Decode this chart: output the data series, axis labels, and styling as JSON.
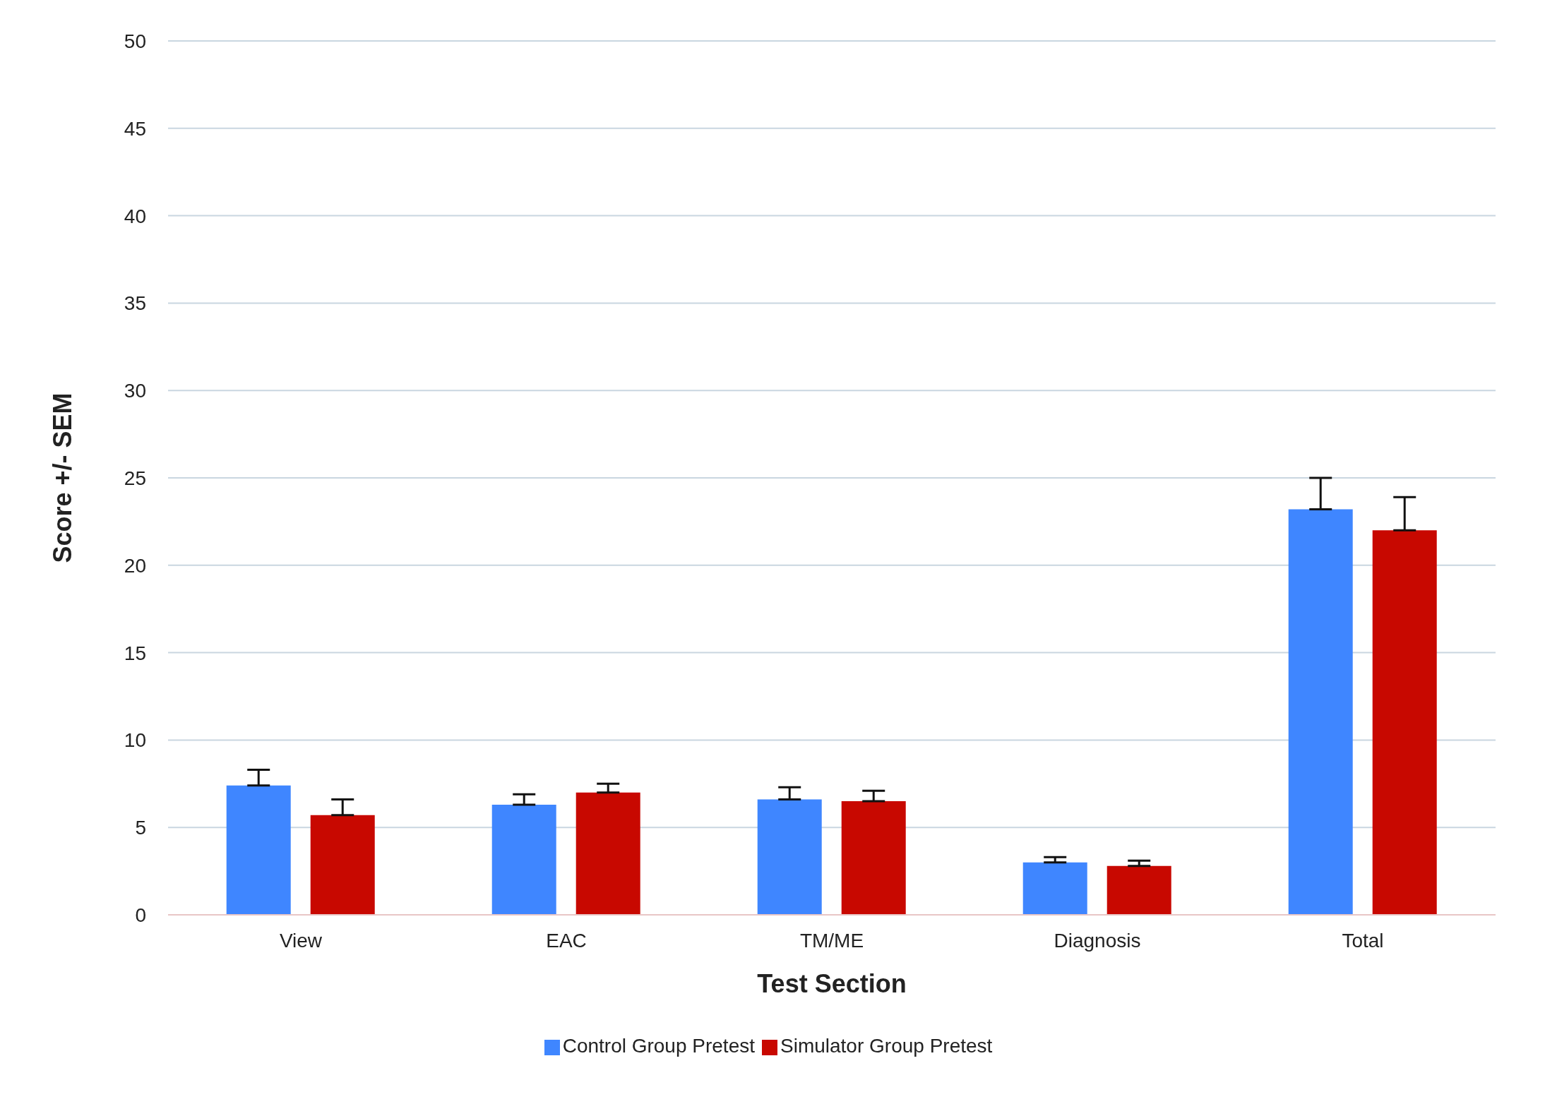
{
  "chart_data": {
    "type": "bar",
    "xlabel": "Test Section",
    "ylabel": "Score +/- SEM",
    "categories": [
      "View",
      "EAC",
      "TM/ME",
      "Diagnosis",
      "Total"
    ],
    "series": [
      {
        "name": "Control  Group Pretest",
        "color": "#3f86ff",
        "values": [
          7.4,
          6.3,
          6.6,
          3.0,
          23.2
        ],
        "errors": [
          [
            7.4,
            8.3
          ],
          [
            6.3,
            6.9
          ],
          [
            6.6,
            7.3
          ],
          [
            3.0,
            3.3
          ],
          [
            23.2,
            25.0
          ]
        ]
      },
      {
        "name": "Simulator Group Pretest",
        "color": "#c80800",
        "values": [
          5.7,
          7.0,
          6.5,
          2.8,
          22.0
        ],
        "errors": [
          [
            5.7,
            6.6
          ],
          [
            7.0,
            7.5
          ],
          [
            6.5,
            7.1
          ],
          [
            2.8,
            3.1
          ],
          [
            22.0,
            23.9
          ]
        ]
      }
    ],
    "ylim": [
      0,
      50
    ],
    "yticks": [
      0,
      5,
      10,
      15,
      20,
      25,
      30,
      35,
      40,
      45,
      50
    ],
    "grid": "y",
    "legend": "bottom"
  }
}
